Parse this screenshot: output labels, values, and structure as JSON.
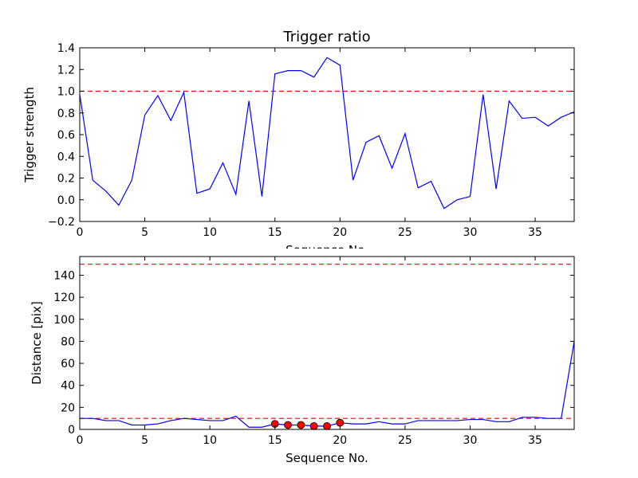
{
  "chart_data": [
    {
      "type": "line",
      "title": "Trigger ratio",
      "xlabel": "Sequence No.",
      "ylabel": "Trigger strength",
      "xlim": [
        0,
        38
      ],
      "ylim": [
        -0.2,
        1.4
      ],
      "xticks": [
        0,
        5,
        10,
        15,
        20,
        25,
        30,
        35
      ],
      "yticks": [
        -0.2,
        0.0,
        0.2,
        0.4,
        0.6,
        0.8,
        1.0,
        1.2,
        1.4
      ],
      "ytick_labels": [
        "−0.2",
        "0.0",
        "0.2",
        "0.4",
        "0.6",
        "0.8",
        "1.0",
        "1.2",
        "1.4"
      ],
      "grid": false,
      "series": [
        {
          "color": "#0000ff",
          "x": [
            0,
            1,
            2,
            3,
            4,
            5,
            6,
            7,
            8,
            9,
            10,
            11,
            12,
            13,
            14,
            15,
            16,
            17,
            18,
            19,
            20,
            21,
            22,
            23,
            24,
            25,
            26,
            27,
            28,
            29,
            30,
            31,
            32,
            33,
            34,
            35,
            36,
            37,
            38
          ],
          "values": [
            0.97,
            0.18,
            0.08,
            -0.05,
            0.18,
            0.78,
            0.96,
            0.73,
            0.99,
            0.06,
            0.1,
            0.34,
            0.05,
            0.91,
            0.03,
            1.16,
            1.19,
            1.19,
            1.13,
            1.31,
            1.24,
            0.18,
            0.53,
            0.59,
            0.29,
            0.61,
            0.11,
            0.17,
            -0.08,
            0.0,
            0.03,
            0.97,
            0.1,
            0.91,
            0.75,
            0.76,
            0.68,
            0.76,
            0.81
          ]
        }
      ],
      "hlines": [
        {
          "y": 1.0,
          "color": "#ff0000",
          "style": "dashed"
        }
      ]
    },
    {
      "type": "line",
      "title": "",
      "xlabel": "Sequence No.",
      "ylabel": "Distance [pix]",
      "xlim": [
        0,
        38
      ],
      "ylim": [
        0,
        157
      ],
      "xticks": [
        0,
        5,
        10,
        15,
        20,
        25,
        30,
        35
      ],
      "yticks": [
        0,
        20,
        40,
        60,
        80,
        100,
        120,
        140
      ],
      "ytick_labels": [
        "0",
        "20",
        "40",
        "60",
        "80",
        "100",
        "120",
        "140"
      ],
      "grid": false,
      "series": [
        {
          "color": "#0000ff",
          "x": [
            0,
            1,
            2,
            3,
            4,
            5,
            6,
            7,
            8,
            9,
            10,
            11,
            12,
            13,
            14,
            15,
            16,
            17,
            18,
            19,
            20,
            21,
            22,
            23,
            24,
            25,
            26,
            27,
            28,
            29,
            30,
            31,
            32,
            33,
            34,
            35,
            36,
            37,
            38
          ],
          "values": [
            10,
            10,
            8,
            8,
            4,
            4,
            5,
            8,
            10,
            9,
            8,
            8,
            12,
            2,
            2,
            5,
            4,
            4,
            3,
            3,
            6,
            5,
            5,
            7,
            5,
            5,
            8,
            8,
            8,
            8,
            9,
            9,
            7,
            7,
            11,
            11,
            10,
            10,
            80
          ]
        }
      ],
      "markers": {
        "color": "#ff0000",
        "x": [
          15,
          16,
          17,
          18,
          19,
          20
        ],
        "values": [
          5,
          4,
          4,
          3,
          3,
          6
        ]
      },
      "hlines": [
        {
          "y": 150,
          "color": "#ff0000",
          "style": "dashed"
        },
        {
          "y": 10,
          "color": "#ff0000",
          "style": "dashed"
        }
      ]
    }
  ]
}
